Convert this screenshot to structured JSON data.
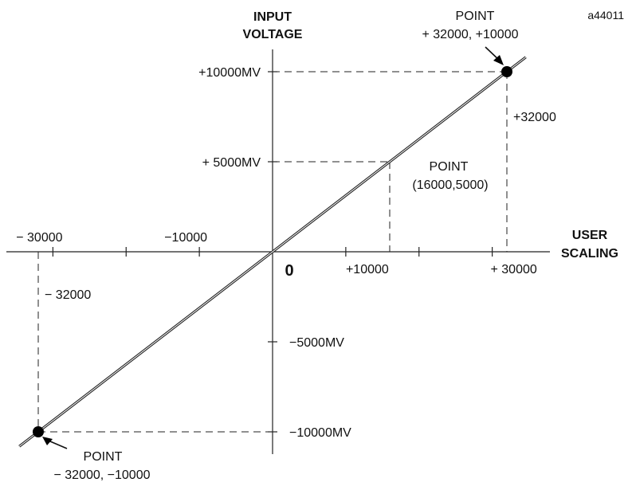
{
  "figure_id": "a44011",
  "chart_data": {
    "type": "line",
    "xlabel": [
      "USER",
      "SCALING"
    ],
    "ylabel": [
      "INPUT",
      "VOLTAGE"
    ],
    "xlim": [
      -35000,
      35000
    ],
    "ylim": [
      -10500,
      11500
    ],
    "series": [
      {
        "x": [
          -32000,
          32000
        ],
        "y": [
          -10000,
          10000
        ]
      }
    ],
    "x_ticks": [
      {
        "value": -30000,
        "label": "− 30000"
      },
      {
        "value": -20000,
        "label": ""
      },
      {
        "value": -10000,
        "label": "−10000"
      },
      {
        "value": 10000,
        "label": "+10000"
      },
      {
        "value": 20000,
        "label": ""
      },
      {
        "value": 30000,
        "label": "+ 30000"
      }
    ],
    "y_ticks": [
      {
        "value": 10000,
        "label": "+10000MV"
      },
      {
        "value": 5000,
        "label": "+ 5000MV"
      },
      {
        "value": -5000,
        "label": "−5000MV"
      },
      {
        "value": -10000,
        "label": "−10000MV"
      }
    ],
    "origin_label": "0",
    "points": [
      {
        "x": 32000,
        "y": 10000,
        "marker": true,
        "label": [
          "POINT",
          "+ 32000,  +10000"
        ]
      },
      {
        "x": 16000,
        "y": 5000,
        "marker": false,
        "label": [
          "POINT",
          "(16000,5000)"
        ]
      },
      {
        "x": -32000,
        "y": -10000,
        "marker": true,
        "label": [
          "POINT",
          "− 32000,  −10000"
        ]
      }
    ],
    "dimension_labels": [
      {
        "label": "+32000"
      },
      {
        "label": "− 32000"
      }
    ],
    "grid": false,
    "legend": "none"
  }
}
